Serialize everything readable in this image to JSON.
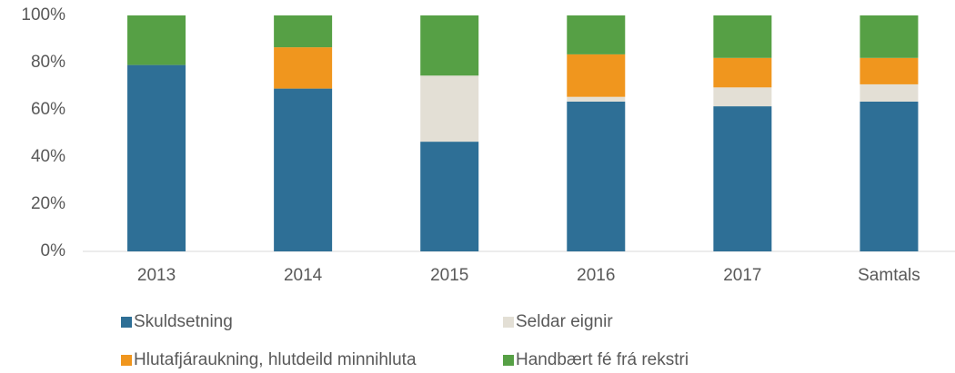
{
  "chart_data": {
    "type": "stacked_bar",
    "categories": [
      "2013",
      "2014",
      "2015",
      "2016",
      "2017",
      "Samtals"
    ],
    "series": [
      {
        "name": "Skuldsetning",
        "color": "#2e6f96",
        "values": [
          79,
          69,
          46.5,
          63.5,
          61.5,
          63.5
        ]
      },
      {
        "name": "Seldar eignir",
        "color": "#e3dfd5",
        "values": [
          0,
          0,
          28,
          2,
          8,
          7.3
        ]
      },
      {
        "name": "Hlutafjáraukning, hlutdeild minnihluta",
        "color": "#f0961e",
        "values": [
          0,
          17.5,
          0,
          18,
          12.5,
          11.2
        ]
      },
      {
        "name": "Handbært fé frá rekstri",
        "color": "#56a045",
        "values": [
          21,
          13.5,
          25.5,
          16.5,
          18,
          18
        ]
      }
    ],
    "ylim": [
      0,
      100
    ],
    "yticks": [
      {
        "value": 0,
        "label": "0%"
      },
      {
        "value": 20,
        "label": "20%"
      },
      {
        "value": 40,
        "label": "40%"
      },
      {
        "value": 60,
        "label": "60%"
      },
      {
        "value": 80,
        "label": "80%"
      },
      {
        "value": 100,
        "label": "100%"
      }
    ],
    "grid": false,
    "legend": "bottom"
  }
}
